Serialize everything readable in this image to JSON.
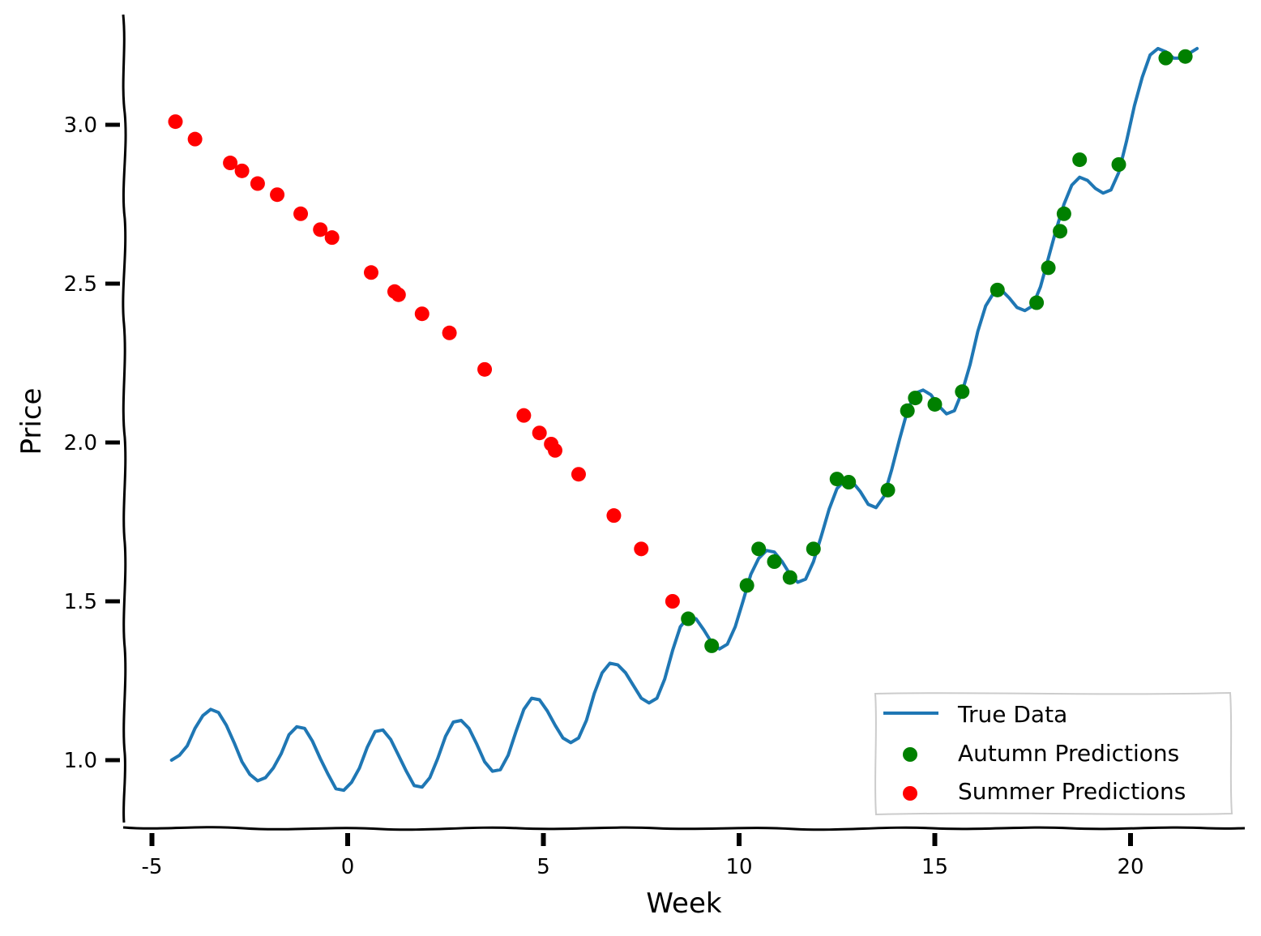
{
  "chart_data": {
    "type": "line+scatter",
    "title": "",
    "xlabel": "Week",
    "ylabel": "Price",
    "xlim": [
      -5.7,
      23.0
    ],
    "ylim": [
      0.8,
      3.35
    ],
    "x_ticks": [
      -5,
      0,
      5,
      10,
      15,
      20
    ],
    "x_tick_labels": [
      "-5",
      "0",
      "5",
      "10",
      "15",
      "20"
    ],
    "y_ticks": [
      1.0,
      1.5,
      2.0,
      2.5,
      3.0
    ],
    "y_tick_labels": [
      "1.0",
      "1.5",
      "2.0",
      "2.5",
      "3.0"
    ],
    "legend_position": "bottom-right",
    "series": [
      {
        "name": "True Data",
        "type": "line",
        "color": "#1f77b4",
        "x": [
          -4.5,
          -4.3,
          -4.1,
          -3.9,
          -3.7,
          -3.5,
          -3.3,
          -3.1,
          -2.9,
          -2.7,
          -2.5,
          -2.3,
          -2.1,
          -1.9,
          -1.7,
          -1.5,
          -1.3,
          -1.1,
          -0.9,
          -0.7,
          -0.5,
          -0.3,
          -0.1,
          0.1,
          0.3,
          0.5,
          0.7,
          0.9,
          1.1,
          1.3,
          1.5,
          1.7,
          1.9,
          2.1,
          2.3,
          2.5,
          2.7,
          2.9,
          3.1,
          3.3,
          3.5,
          3.7,
          3.9,
          4.1,
          4.3,
          4.5,
          4.7,
          4.9,
          5.1,
          5.3,
          5.5,
          5.7,
          5.9,
          6.1,
          6.3,
          6.5,
          6.7,
          6.9,
          7.1,
          7.3,
          7.5,
          7.7,
          7.9,
          8.1,
          8.3,
          8.5,
          8.7,
          8.9,
          9.1,
          9.3,
          9.5,
          9.7,
          9.9,
          10.1,
          10.3,
          10.5,
          10.7,
          10.9,
          11.1,
          11.3,
          11.5,
          11.7,
          11.9,
          12.1,
          12.3,
          12.5,
          12.7,
          12.9,
          13.1,
          13.3,
          13.5,
          13.7,
          13.9,
          14.1,
          14.3,
          14.5,
          14.7,
          14.9,
          15.1,
          15.3,
          15.5,
          15.7,
          15.9,
          16.1,
          16.3,
          16.5,
          16.7,
          16.9,
          17.1,
          17.3,
          17.5,
          17.7,
          17.9,
          18.1,
          18.3,
          18.5,
          18.7,
          18.9,
          19.1,
          19.3,
          19.5,
          19.7,
          19.9,
          20.1,
          20.3,
          20.5,
          20.7,
          20.9,
          21.1,
          21.3,
          21.5,
          21.7
        ],
        "values": [
          1.0,
          1.015,
          1.045,
          1.1,
          1.14,
          1.16,
          1.15,
          1.11,
          1.055,
          0.995,
          0.955,
          0.935,
          0.945,
          0.975,
          1.02,
          1.08,
          1.105,
          1.1,
          1.06,
          1.005,
          0.955,
          0.91,
          0.905,
          0.93,
          0.975,
          1.04,
          1.09,
          1.095,
          1.065,
          1.015,
          0.965,
          0.92,
          0.915,
          0.945,
          1.005,
          1.075,
          1.12,
          1.125,
          1.1,
          1.05,
          0.995,
          0.965,
          0.97,
          1.015,
          1.09,
          1.16,
          1.195,
          1.19,
          1.155,
          1.11,
          1.07,
          1.055,
          1.07,
          1.125,
          1.21,
          1.275,
          1.305,
          1.3,
          1.275,
          1.235,
          1.195,
          1.18,
          1.195,
          1.255,
          1.345,
          1.42,
          1.45,
          1.445,
          1.41,
          1.37,
          1.35,
          1.365,
          1.42,
          1.5,
          1.585,
          1.635,
          1.66,
          1.655,
          1.625,
          1.585,
          1.56,
          1.57,
          1.625,
          1.705,
          1.79,
          1.855,
          1.88,
          1.875,
          1.845,
          1.805,
          1.795,
          1.83,
          1.915,
          2.01,
          2.1,
          2.155,
          2.165,
          2.15,
          2.115,
          2.09,
          2.1,
          2.16,
          2.245,
          2.35,
          2.43,
          2.47,
          2.48,
          2.455,
          2.425,
          2.415,
          2.43,
          2.49,
          2.58,
          2.67,
          2.75,
          2.81,
          2.835,
          2.825,
          2.8,
          2.785,
          2.795,
          2.85,
          2.95,
          3.06,
          3.15,
          3.22,
          3.24,
          3.23,
          3.21,
          3.21,
          3.225,
          3.24
        ]
      },
      {
        "name": "Autumn Predictions",
        "type": "scatter",
        "color": "#008000",
        "x": [
          8.7,
          9.3,
          10.2,
          10.5,
          10.9,
          11.3,
          11.9,
          12.5,
          12.8,
          13.8,
          14.3,
          14.5,
          15.0,
          15.7,
          16.6,
          17.6,
          17.9,
          18.2,
          18.3,
          18.7,
          19.7,
          20.9,
          21.4
        ],
        "values": [
          1.445,
          1.36,
          1.55,
          1.665,
          1.625,
          1.575,
          1.665,
          1.885,
          1.875,
          1.85,
          2.1,
          2.14,
          2.12,
          2.16,
          2.48,
          2.44,
          2.55,
          2.665,
          2.72,
          2.89,
          2.875,
          3.21,
          3.215
        ]
      },
      {
        "name": "Summer Predictions",
        "type": "scatter",
        "color": "#ff0000",
        "x": [
          -4.4,
          -3.9,
          -3.0,
          -2.7,
          -2.3,
          -1.8,
          -1.2,
          -0.7,
          -0.4,
          0.6,
          1.2,
          1.3,
          1.9,
          2.6,
          3.5,
          4.5,
          4.9,
          5.2,
          5.3,
          5.9,
          6.8,
          7.5,
          8.3
        ],
        "values": [
          3.01,
          2.955,
          2.88,
          2.855,
          2.815,
          2.78,
          2.72,
          2.67,
          2.645,
          2.535,
          2.475,
          2.465,
          2.405,
          2.345,
          2.23,
          2.085,
          2.03,
          1.995,
          1.975,
          1.9,
          1.77,
          1.665,
          1.5
        ]
      }
    ]
  }
}
